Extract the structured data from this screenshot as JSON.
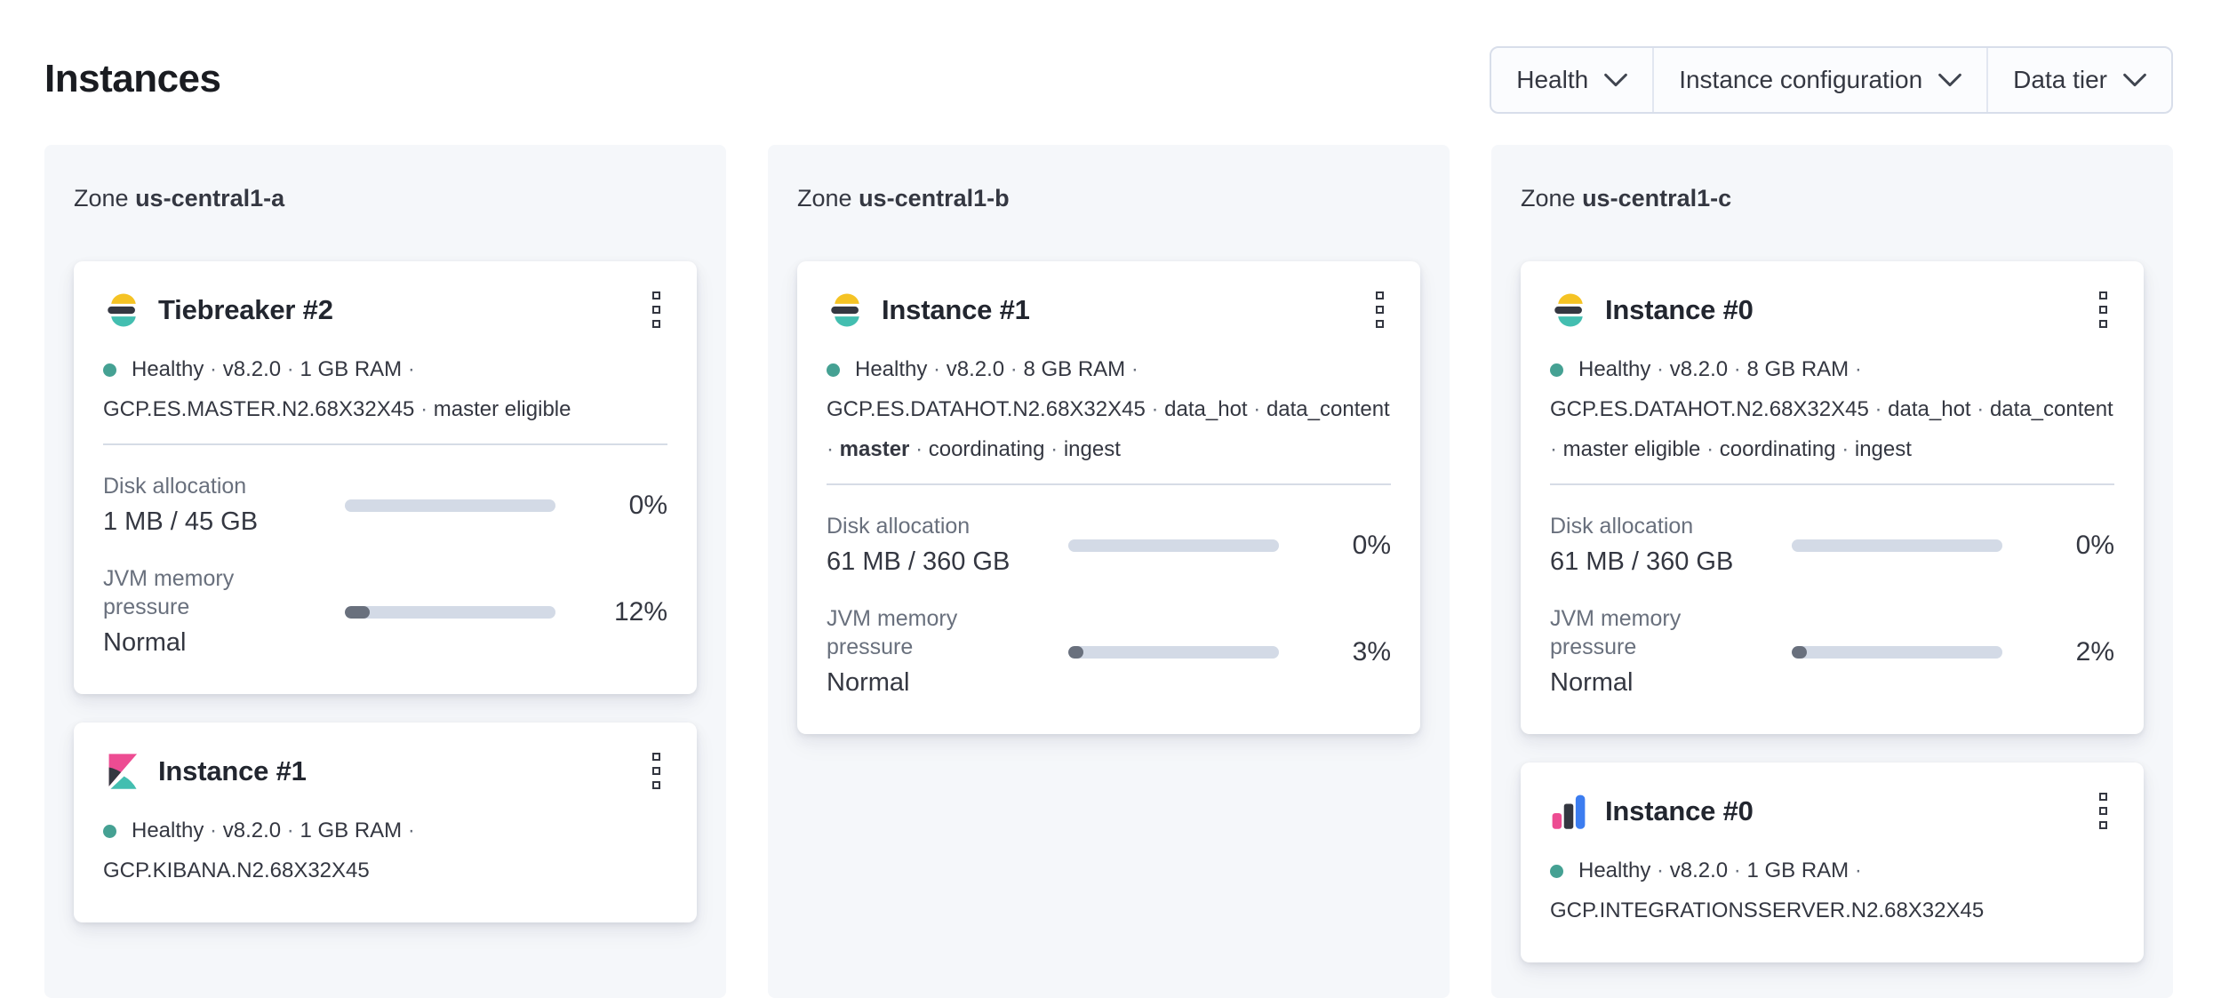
{
  "page": {
    "title": "Instances"
  },
  "filters": {
    "buttons": [
      {
        "label": "Health"
      },
      {
        "label": "Instance configuration"
      },
      {
        "label": "Data tier"
      }
    ]
  },
  "colors": {
    "health_dot": "#45a193",
    "bar_track": "#d3dae6",
    "bar_fill": "#69707d",
    "zone_panel_bg": "#f5f7fa",
    "elastic_yellow": "#f5c324",
    "elastic_teal": "#43beb0",
    "elastic_dark": "#343741",
    "kibana_pink": "#ed4c92",
    "integrations_blue": "#3c7df0"
  },
  "zones": [
    {
      "label_prefix": "Zone",
      "name": "us-central1-a",
      "cards": [
        {
          "product": "elasticsearch",
          "logo_icon": "elasticsearch-logo",
          "title": "Tiebreaker #2",
          "meta_tokens": [
            {
              "text": "Healthy"
            },
            {
              "text": "v8.2.0"
            },
            {
              "text": "1 GB RAM"
            },
            {
              "text": "GCP.ES.MASTER.N2.68X32X45"
            },
            {
              "text": "master eligible"
            }
          ],
          "metrics": [
            {
              "label": "Disk allocation",
              "value": "1 MB / 45 GB",
              "percent": 0,
              "percent_label": "0%"
            },
            {
              "label": "JVM memory pressure",
              "value": "Normal",
              "percent": 12,
              "percent_label": "12%"
            }
          ]
        },
        {
          "product": "kibana",
          "logo_icon": "kibana-logo",
          "title": "Instance #1",
          "meta_tokens": [
            {
              "text": "Healthy"
            },
            {
              "text": "v8.2.0"
            },
            {
              "text": "1 GB RAM"
            },
            {
              "text": "GCP.KIBANA.N2.68X32X45"
            }
          ],
          "metrics": []
        }
      ]
    },
    {
      "label_prefix": "Zone",
      "name": "us-central1-b",
      "cards": [
        {
          "product": "elasticsearch",
          "logo_icon": "elasticsearch-logo",
          "title": "Instance #1",
          "meta_tokens": [
            {
              "text": "Healthy"
            },
            {
              "text": "v8.2.0"
            },
            {
              "text": "8 GB RAM"
            },
            {
              "text": "GCP.ES.DATAHOT.N2.68X32X45"
            },
            {
              "text": "data_hot"
            },
            {
              "text": "data_content"
            },
            {
              "text": "master",
              "bold": true
            },
            {
              "text": "coordinating"
            },
            {
              "text": "ingest"
            }
          ],
          "metrics": [
            {
              "label": "Disk allocation",
              "value": "61 MB / 360 GB",
              "percent": 0,
              "percent_label": "0%"
            },
            {
              "label": "JVM memory pressure",
              "value": "Normal",
              "percent": 3,
              "percent_label": "3%"
            }
          ]
        }
      ]
    },
    {
      "label_prefix": "Zone",
      "name": "us-central1-c",
      "cards": [
        {
          "product": "elasticsearch",
          "logo_icon": "elasticsearch-logo",
          "title": "Instance #0",
          "meta_tokens": [
            {
              "text": "Healthy"
            },
            {
              "text": "v8.2.0"
            },
            {
              "text": "8 GB RAM"
            },
            {
              "text": "GCP.ES.DATAHOT.N2.68X32X45"
            },
            {
              "text": "data_hot"
            },
            {
              "text": "data_content"
            },
            {
              "text": "master eligible"
            },
            {
              "text": "coordinating"
            },
            {
              "text": "ingest"
            }
          ],
          "metrics": [
            {
              "label": "Disk allocation",
              "value": "61 MB / 360 GB",
              "percent": 0,
              "percent_label": "0%"
            },
            {
              "label": "JVM memory pressure",
              "value": "Normal",
              "percent": 2,
              "percent_label": "2%"
            }
          ]
        },
        {
          "product": "integrations-server",
          "logo_icon": "integrations-server-logo",
          "title": "Instance #0",
          "meta_tokens": [
            {
              "text": "Healthy"
            },
            {
              "text": "v8.2.0"
            },
            {
              "text": "1 GB RAM"
            },
            {
              "text": "GCP.INTEGRATIONSSERVER.N2.68X32X45"
            }
          ],
          "metrics": []
        }
      ]
    }
  ]
}
